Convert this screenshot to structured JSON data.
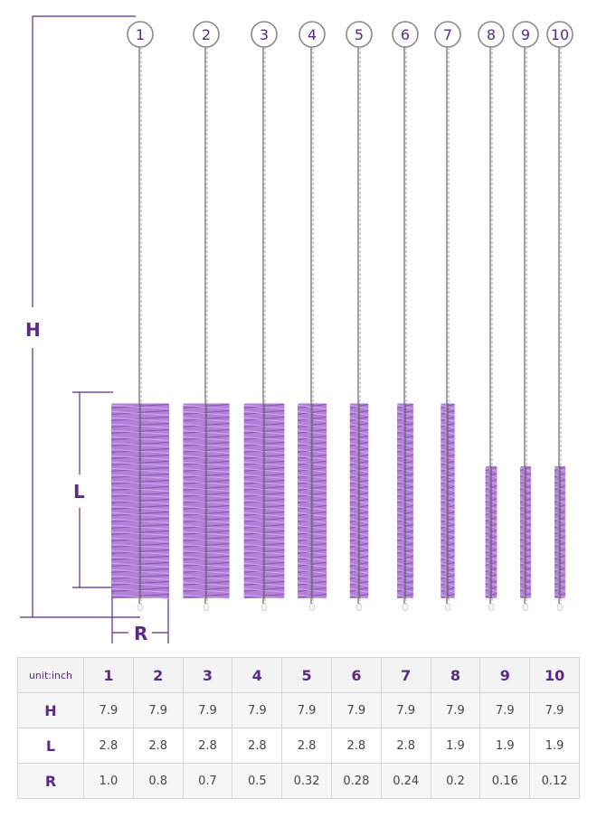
{
  "dimension_labels": {
    "height": "H",
    "length": "L",
    "radius": "R"
  },
  "colors": {
    "accent": "#5b2a86",
    "bristle": "#a66bd0",
    "bristle_dark": "#7a3fa6",
    "wire": "#8a8a8a",
    "tip": "#f4f4f4"
  },
  "brushes": [
    {
      "number": "1",
      "bristle_length_in": 2.8,
      "diameter_in": 1.0
    },
    {
      "number": "2",
      "bristle_length_in": 2.8,
      "diameter_in": 0.8
    },
    {
      "number": "3",
      "bristle_length_in": 2.8,
      "diameter_in": 0.7
    },
    {
      "number": "4",
      "bristle_length_in": 2.8,
      "diameter_in": 0.5
    },
    {
      "number": "5",
      "bristle_length_in": 2.8,
      "diameter_in": 0.32
    },
    {
      "number": "6",
      "bristle_length_in": 2.8,
      "diameter_in": 0.28
    },
    {
      "number": "7",
      "bristle_length_in": 2.8,
      "diameter_in": 0.24
    },
    {
      "number": "8",
      "bristle_length_in": 1.9,
      "diameter_in": 0.2
    },
    {
      "number": "9",
      "bristle_length_in": 1.9,
      "diameter_in": 0.16
    },
    {
      "number": "10",
      "bristle_length_in": 1.9,
      "diameter_in": 0.12
    }
  ],
  "table": {
    "unit_label": "unit:inch",
    "columns": [
      "1",
      "2",
      "3",
      "4",
      "5",
      "6",
      "7",
      "8",
      "9",
      "10"
    ],
    "rows": [
      {
        "label": "H",
        "values": [
          "7.9",
          "7.9",
          "7.9",
          "7.9",
          "7.9",
          "7.9",
          "7.9",
          "7.9",
          "7.9",
          "7.9"
        ]
      },
      {
        "label": "L",
        "values": [
          "2.8",
          "2.8",
          "2.8",
          "2.8",
          "2.8",
          "2.8",
          "2.8",
          "1.9",
          "1.9",
          "1.9"
        ]
      },
      {
        "label": "R",
        "values": [
          "1.0",
          "0.8",
          "0.7",
          "0.5",
          "0.32",
          "0.28",
          "0.24",
          "0.2",
          "0.16",
          "0.12"
        ]
      }
    ]
  }
}
